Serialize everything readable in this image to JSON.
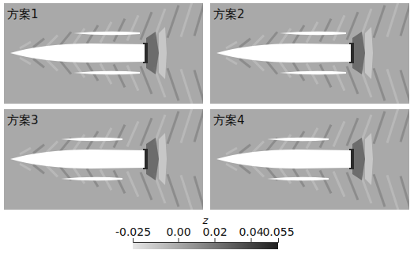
{
  "chart_data": {
    "type": "contour",
    "panels": [
      {
        "label": "方案1"
      },
      {
        "label": "方案2"
      },
      {
        "label": "方案3"
      },
      {
        "label": "方案4"
      }
    ],
    "colorbar": {
      "title": "z",
      "range": [
        -0.025,
        0.055
      ],
      "ticks": [
        -0.025,
        {
          "value": 0,
          "label": "0.00"
        },
        0.02,
        0.04,
        0.055
      ]
    }
  }
}
